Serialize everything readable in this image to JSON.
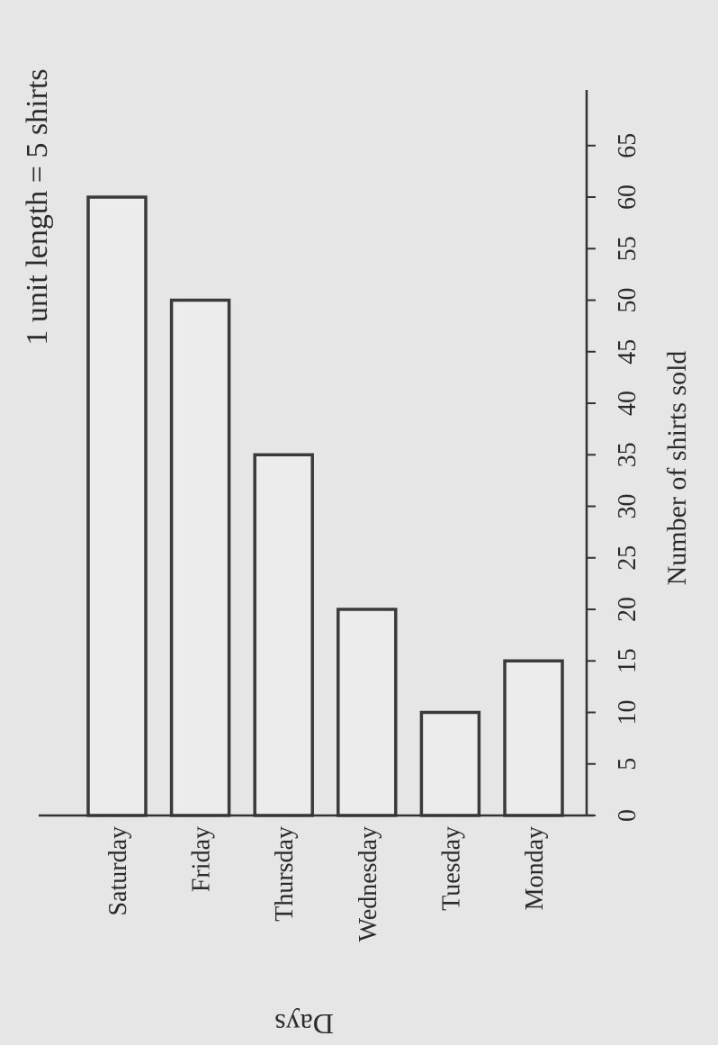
{
  "chart_data": {
    "type": "bar",
    "orientation": "horizontal",
    "scale_note": "1 unit length = 5 shirts",
    "xlabel": "Number of shirts sold",
    "ylabel": "Days",
    "categories": [
      "Saturday",
      "Friday",
      "Thursday",
      "Wednesday",
      "Tuesday",
      "Monday"
    ],
    "values": [
      60,
      50,
      35,
      20,
      10,
      15
    ],
    "xticks": [
      0,
      5,
      10,
      15,
      20,
      25,
      30,
      35,
      40,
      45,
      50,
      55,
      60,
      65
    ],
    "xlim": [
      0,
      70
    ],
    "grid": false,
    "colors": {
      "bar_fill": "#ececec",
      "bar_stroke": "#3a3a3a",
      "text": "#2b2b2b",
      "background": "#e6e6e6"
    }
  }
}
